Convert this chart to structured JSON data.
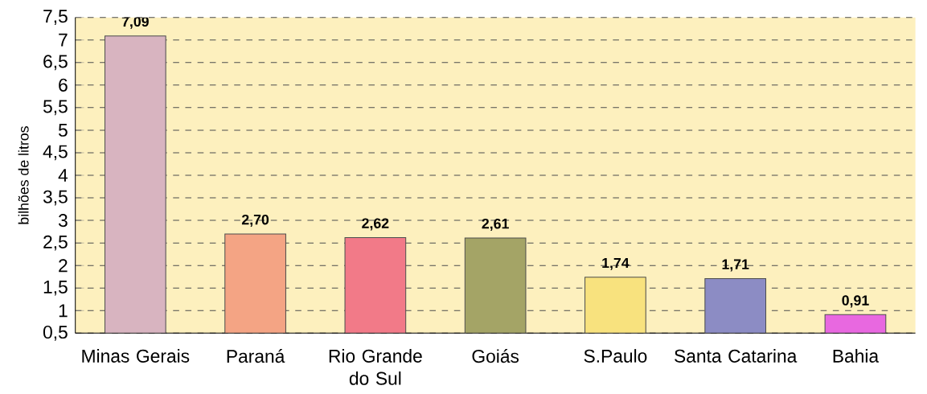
{
  "chart_data": {
    "type": "bar",
    "ylabel": "bilhões de litros",
    "categories": [
      "Minas Gerais",
      "Paraná",
      "Rio Grande do Sul",
      "Goiás",
      "S.Paulo",
      "Santa Catarina",
      "Bahia"
    ],
    "values": [
      7.09,
      2.7,
      2.62,
      2.61,
      1.74,
      1.71,
      0.91
    ],
    "value_labels": [
      "7,09",
      "2,70",
      "2,62",
      "2,61",
      "1,74",
      "1,71",
      "0,91"
    ],
    "colors": [
      "#d8b4c0",
      "#f4a484",
      "#f27a88",
      "#a4a466",
      "#f8e27e",
      "#8c8cc4",
      "#e868e0"
    ],
    "ylim": [
      0.5,
      7.5
    ],
    "yticks": [
      {
        "value": 0.5,
        "label": "0,5"
      },
      1,
      {
        "value": 1.5,
        "label": "1,5"
      },
      2,
      {
        "value": 2.5,
        "label": "2,5"
      },
      3,
      {
        "value": 3.5,
        "label": "3,5"
      },
      4,
      {
        "value": 4.5,
        "label": "4,5"
      },
      5,
      {
        "value": 5.5,
        "label": "5,5"
      },
      6,
      {
        "value": 6.5,
        "label": "6,5"
      },
      7,
      {
        "value": 7.5,
        "label": "7,5"
      }
    ],
    "grid": "y",
    "line_style": "dashed"
  }
}
